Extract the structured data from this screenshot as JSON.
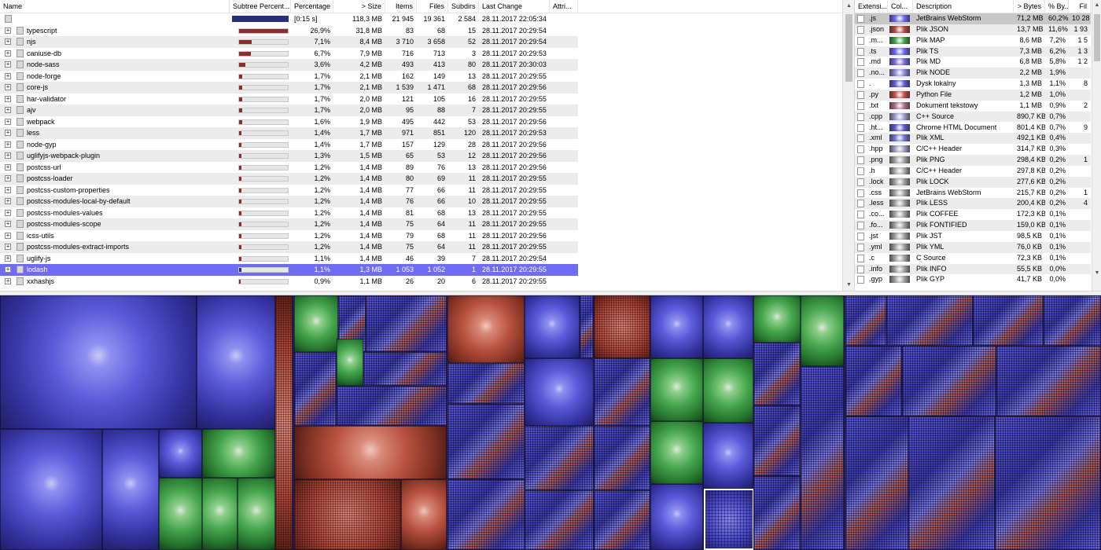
{
  "tree": {
    "columns": {
      "name": "Name",
      "subtree": "Subtree Percent...",
      "percentage": "Percentage",
      "size": "> Size",
      "items": "Items",
      "files": "Files",
      "subdirs": "Subdirs",
      "last_change": "Last Change",
      "attributes": "Attri..."
    },
    "summary": {
      "percentage": "[0:15 s]",
      "size": "118,3 MB",
      "items": "21 945",
      "files": "19 361",
      "subdirs": "2 584",
      "last_change": "28.11.2017  22:05:34"
    },
    "rows": [
      {
        "name": "typescript",
        "pct": "26,9%",
        "fill": 0.269,
        "size": "31,8 MB",
        "items": "83",
        "files": "68",
        "subdirs": "15",
        "date": "28.11.2017  20:29:54"
      },
      {
        "name": "njs",
        "pct": "7,1%",
        "fill": 0.071,
        "size": "8,4 MB",
        "items": "3 710",
        "files": "3 658",
        "subdirs": "52",
        "date": "28.11.2017  20:29:54"
      },
      {
        "name": "caniuse-db",
        "pct": "6,7%",
        "fill": 0.067,
        "size": "7,9 MB",
        "items": "716",
        "files": "713",
        "subdirs": "3",
        "date": "28.11.2017  20:29:53"
      },
      {
        "name": "node-sass",
        "pct": "3,6%",
        "fill": 0.036,
        "size": "4,2 MB",
        "items": "493",
        "files": "413",
        "subdirs": "80",
        "date": "28.11.2017  20:30:03"
      },
      {
        "name": "node-forge",
        "pct": "1,7%",
        "fill": 0.017,
        "size": "2,1 MB",
        "items": "162",
        "files": "149",
        "subdirs": "13",
        "date": "28.11.2017  20:29:55"
      },
      {
        "name": "core-js",
        "pct": "1,7%",
        "fill": 0.017,
        "size": "2,1 MB",
        "items": "1 539",
        "files": "1 471",
        "subdirs": "68",
        "date": "28.11.2017  20:29:56"
      },
      {
        "name": "har-validator",
        "pct": "1,7%",
        "fill": 0.017,
        "size": "2,0 MB",
        "items": "121",
        "files": "105",
        "subdirs": "16",
        "date": "28.11.2017  20:29:55"
      },
      {
        "name": "ajv",
        "pct": "1,7%",
        "fill": 0.017,
        "size": "2,0 MB",
        "items": "95",
        "files": "88",
        "subdirs": "7",
        "date": "28.11.2017  20:29:55"
      },
      {
        "name": "webpack",
        "pct": "1,6%",
        "fill": 0.016,
        "size": "1,9 MB",
        "items": "495",
        "files": "442",
        "subdirs": "53",
        "date": "28.11.2017  20:29:56"
      },
      {
        "name": "less",
        "pct": "1,4%",
        "fill": 0.014,
        "size": "1,7 MB",
        "items": "971",
        "files": "851",
        "subdirs": "120",
        "date": "28.11.2017  20:29:53"
      },
      {
        "name": "node-gyp",
        "pct": "1,4%",
        "fill": 0.014,
        "size": "1,7 MB",
        "items": "157",
        "files": "129",
        "subdirs": "28",
        "date": "28.11.2017  20:29:56"
      },
      {
        "name": "uglifyjs-webpack-plugin",
        "pct": "1,3%",
        "fill": 0.013,
        "size": "1,5 MB",
        "items": "65",
        "files": "53",
        "subdirs": "12",
        "date": "28.11.2017  20:29:56"
      },
      {
        "name": "postcss-url",
        "pct": "1,2%",
        "fill": 0.012,
        "size": "1,4 MB",
        "items": "89",
        "files": "76",
        "subdirs": "13",
        "date": "28.11.2017  20:29:56"
      },
      {
        "name": "postcss-loader",
        "pct": "1,2%",
        "fill": 0.012,
        "size": "1,4 MB",
        "items": "80",
        "files": "69",
        "subdirs": "11",
        "date": "28.11.2017  20:29:55"
      },
      {
        "name": "postcss-custom-properties",
        "pct": "1,2%",
        "fill": 0.012,
        "size": "1,4 MB",
        "items": "77",
        "files": "66",
        "subdirs": "11",
        "date": "28.11.2017  20:29:55"
      },
      {
        "name": "postcss-modules-local-by-default",
        "pct": "1,2%",
        "fill": 0.012,
        "size": "1,4 MB",
        "items": "76",
        "files": "66",
        "subdirs": "10",
        "date": "28.11.2017  20:29:55"
      },
      {
        "name": "postcss-modules-values",
        "pct": "1,2%",
        "fill": 0.012,
        "size": "1,4 MB",
        "items": "81",
        "files": "68",
        "subdirs": "13",
        "date": "28.11.2017  20:29:55"
      },
      {
        "name": "postcss-modules-scope",
        "pct": "1,2%",
        "fill": 0.012,
        "size": "1,4 MB",
        "items": "75",
        "files": "64",
        "subdirs": "11",
        "date": "28.11.2017  20:29:55"
      },
      {
        "name": "icss-utils",
        "pct": "1,2%",
        "fill": 0.012,
        "size": "1,4 MB",
        "items": "79",
        "files": "68",
        "subdirs": "11",
        "date": "28.11.2017  20:29:56"
      },
      {
        "name": "postcss-modules-extract-imports",
        "pct": "1,2%",
        "fill": 0.012,
        "size": "1,4 MB",
        "items": "75",
        "files": "64",
        "subdirs": "11",
        "date": "28.11.2017  20:29:55"
      },
      {
        "name": "uglify-js",
        "pct": "1,1%",
        "fill": 0.011,
        "size": "1,4 MB",
        "items": "46",
        "files": "39",
        "subdirs": "7",
        "date": "28.11.2017  20:29:54"
      },
      {
        "name": "lodash",
        "pct": "1,1%",
        "fill": 0.011,
        "size": "1,3 MB",
        "items": "1 053",
        "files": "1 052",
        "subdirs": "1",
        "date": "28.11.2017  20:29:55",
        "selected": true
      },
      {
        "name": "xxhashjs",
        "pct": "0,9%",
        "fill": 0.009,
        "size": "1,1 MB",
        "items": "26",
        "files": "20",
        "subdirs": "6",
        "date": "28.11.2017  20:29:55"
      }
    ]
  },
  "extensions": {
    "columns": {
      "ext": "Extensi...",
      "color": "Col...",
      "description": "Description",
      "bytes": "> Bytes",
      "percent": "% By...",
      "files": "Fil"
    },
    "rows": [
      {
        "ext": ".js",
        "color": "#6b67e8",
        "description": "JetBrains WebStorm",
        "bytes": "71,2 MB",
        "pct": "60,2%",
        "files": "10 28"
      },
      {
        "ext": ".json",
        "color": "#b34a3d",
        "description": "Plik JSON",
        "bytes": "13,7 MB",
        "pct": "11,6%",
        "files": "1 93"
      },
      {
        "ext": ".m...",
        "color": "#3fa14a",
        "description": "Plik MAP",
        "bytes": "8,6 MB",
        "pct": "7,2%",
        "files": "1 5"
      },
      {
        "ext": ".ts",
        "color": "#6b67e8",
        "description": "Plik TS",
        "bytes": "7,3 MB",
        "pct": "6,2%",
        "files": "1 3"
      },
      {
        "ext": ".md",
        "color": "#7a6de0",
        "description": "Plik MD",
        "bytes": "6,8 MB",
        "pct": "5,8%",
        "files": "1 2"
      },
      {
        "ext": ".no...",
        "color": "#8a8ad8",
        "description": "Plik NODE",
        "bytes": "2,2 MB",
        "pct": "1,9%",
        "files": ""
      },
      {
        "ext": ".",
        "color": "#5e5bd8",
        "description": "Dysk lokalny",
        "bytes": "1,3 MB",
        "pct": "1,1%",
        "files": "8"
      },
      {
        "ext": ".py",
        "color": "#c0504d",
        "description": "Python File",
        "bytes": "1,2 MB",
        "pct": "1,0%",
        "files": ""
      },
      {
        "ext": ".txt",
        "color": "#b06a8a",
        "description": "Dokument tekstowy",
        "bytes": "1,1 MB",
        "pct": "0,9%",
        "files": "2"
      },
      {
        "ext": ".cpp",
        "color": "#9c9cc8",
        "description": "C++ Source",
        "bytes": "890,7 KB",
        "pct": "0,7%",
        "files": ""
      },
      {
        "ext": ".ht...",
        "color": "#5a5ad0",
        "description": "Chrome HTML Document",
        "bytes": "801,4 KB",
        "pct": "0,7%",
        "files": "9"
      },
      {
        "ext": ".xml",
        "color": "#7272d8",
        "description": "Plik XML",
        "bytes": "492,1 KB",
        "pct": "0,4%",
        "files": ""
      },
      {
        "ext": ".hpp",
        "color": "#9c9cc8",
        "description": "C/C++ Header",
        "bytes": "314,7 KB",
        "pct": "0,3%",
        "files": ""
      },
      {
        "ext": ".png",
        "color": "#a0a0a0",
        "description": "Plik PNG",
        "bytes": "298,4 KB",
        "pct": "0,2%",
        "files": "1"
      },
      {
        "ext": ".h",
        "color": "#a8a8a8",
        "description": "C/C++ Header",
        "bytes": "297,8 KB",
        "pct": "0,2%",
        "files": ""
      },
      {
        "ext": ".lock",
        "color": "#a0a0a0",
        "description": "Plik LOCK",
        "bytes": "277,6 KB",
        "pct": "0,2%",
        "files": ""
      },
      {
        "ext": ".css",
        "color": "#a0a0a0",
        "description": "JetBrains WebStorm",
        "bytes": "215,7 KB",
        "pct": "0,2%",
        "files": "1"
      },
      {
        "ext": ".less",
        "color": "#a0a0a0",
        "description": "Plik LESS",
        "bytes": "200,4 KB",
        "pct": "0,2%",
        "files": "4"
      },
      {
        "ext": ".co...",
        "color": "#a0a0a0",
        "description": "Plik COFFEE",
        "bytes": "172,3 KB",
        "pct": "0,1%",
        "files": ""
      },
      {
        "ext": ".fo...",
        "color": "#a0a0a0",
        "description": "Plik FONTIFIED",
        "bytes": "159,0 KB",
        "pct": "0,1%",
        "files": ""
      },
      {
        "ext": ".jst",
        "color": "#a0a0a0",
        "description": "Plik JST",
        "bytes": "98,5 KB",
        "pct": "0,1%",
        "files": ""
      },
      {
        "ext": ".yml",
        "color": "#a0a0a0",
        "description": "Plik YML",
        "bytes": "76,0 KB",
        "pct": "0,1%",
        "files": ""
      },
      {
        "ext": ".c",
        "color": "#a0a0a0",
        "description": "C Source",
        "bytes": "72,3 KB",
        "pct": "0,1%",
        "files": ""
      },
      {
        "ext": ".info",
        "color": "#a0a0a0",
        "description": "Plik INFO",
        "bytes": "55,5 KB",
        "pct": "0,0%",
        "files": ""
      },
      {
        "ext": ".gyp",
        "color": "#a0a0a0",
        "description": "Plik GYP",
        "bytes": "41,7 KB",
        "pct": "0,0%",
        "files": ""
      }
    ]
  },
  "colors": {
    "selection": "#6f6cf2",
    "percent_fill": "#8b2d2d",
    "summary_bar": "#2b2e7a",
    "treemap_blue": "#5b5ad9",
    "treemap_red": "#b8523f",
    "treemap_green": "#46a64d"
  },
  "icons": {
    "expander": "plus-box-icon",
    "folder": "folder-icon",
    "scroll_up": "chevron-up-icon",
    "scroll_down": "chevron-down-icon"
  }
}
